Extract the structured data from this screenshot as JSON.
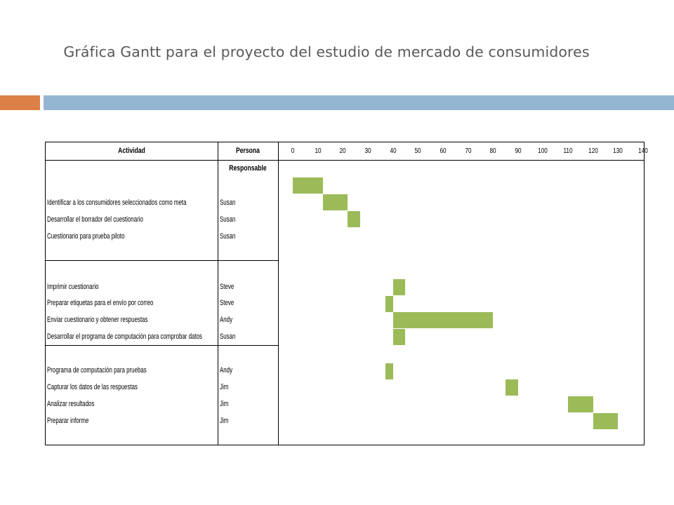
{
  "title": "Gráfica Gantt para el proyecto del estudio de mercado de consumidores",
  "chart_data": {
    "type": "gantt",
    "headers": {
      "activity": "Actividad",
      "person": "Persona Responsable"
    },
    "ticks": [
      "0",
      "10",
      "20",
      "30",
      "40",
      "50",
      "60",
      "70",
      "80",
      "90",
      "100",
      "110",
      "120",
      "130",
      "140"
    ],
    "tasks": [
      {
        "activity": "Identificar a los consumidores seleccionados como meta",
        "person": "Susan",
        "start": 0,
        "end": 12
      },
      {
        "activity": "Desarrollar el borrador del cuestionario",
        "person": "Susan",
        "start": 12,
        "end": 22
      },
      {
        "activity": "Cuestionario para prueba piloto",
        "person": "Susan",
        "start": 22,
        "end": 27
      },
      {
        "activity": "Imprimir cuestionario",
        "person": "Steve",
        "start": 40,
        "end": 45
      },
      {
        "activity": "Preparar etiquetas para el envío por correo",
        "person": "Steve",
        "start": 37,
        "end": 40
      },
      {
        "activity": "Enviar cuestionario y obtener respuestas",
        "person": "Andy",
        "start": 40,
        "end": 80
      },
      {
        "activity": "Desarrollar el programa de computación para comprobar datos",
        "person": "Susan",
        "start": 40,
        "end": 45
      },
      {
        "activity": "Programa de computación para pruebas",
        "person": "Andy",
        "start": 37,
        "end": 40
      },
      {
        "activity": "Capturar los datos de las respuestas",
        "person": "Jim",
        "start": 85,
        "end": 90
      },
      {
        "activity": "Analizar resultados",
        "person": "Jim",
        "start": 110,
        "end": 120
      },
      {
        "activity": "Preparar informe",
        "person": "Jim",
        "start": 120,
        "end": 130
      }
    ]
  }
}
